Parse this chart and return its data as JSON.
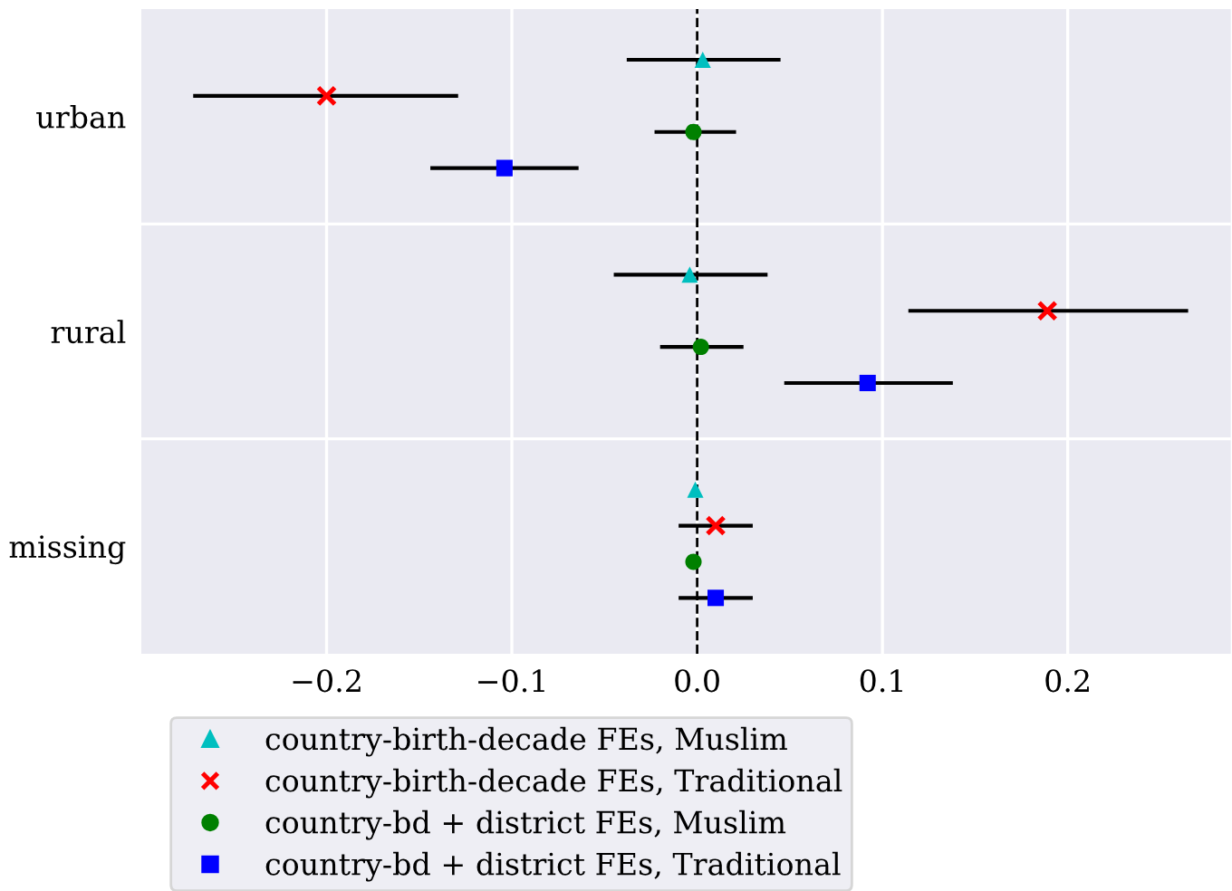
{
  "chart_data": {
    "type": "scatter",
    "orientation": "horizontal",
    "categories": [
      "urban",
      "rural",
      "missing"
    ],
    "series": [
      {
        "name": "country-birth-decade FEs, Muslim",
        "color": "#00bfbf",
        "marker": "triangle",
        "values": [
          0.003,
          -0.004,
          -0.001
        ],
        "errors": [
          [
            -0.038,
            0.045
          ],
          [
            -0.045,
            0.038
          ],
          null
        ]
      },
      {
        "name": "country-birth-decade FEs, Traditional",
        "color": "#ff0000",
        "marker": "cross",
        "values": [
          -0.2,
          0.189,
          0.01
        ],
        "errors": [
          [
            -0.272,
            -0.129
          ],
          [
            0.114,
            0.265
          ],
          [
            -0.01,
            0.03
          ]
        ]
      },
      {
        "name": "country-bd + district FEs, Muslim",
        "color": "#008000",
        "marker": "circle",
        "values": [
          -0.002,
          0.002,
          -0.002
        ],
        "errors": [
          [
            -0.023,
            0.021
          ],
          [
            -0.02,
            0.025
          ],
          null
        ]
      },
      {
        "name": "country-bd + district FEs, Traditional",
        "color": "#0000ff",
        "marker": "square",
        "values": [
          -0.104,
          0.092,
          0.01
        ],
        "errors": [
          [
            -0.144,
            -0.064
          ],
          [
            0.047,
            0.138
          ],
          [
            -0.01,
            0.03
          ]
        ]
      }
    ],
    "xlim": [
      -0.3,
      0.288
    ],
    "xticks": [
      {
        "value": -0.2,
        "label": "−0.2"
      },
      {
        "value": -0.1,
        "label": "−0.1"
      },
      {
        "value": 0.0,
        "label": "0.0"
      },
      {
        "value": 0.1,
        "label": "0.1"
      },
      {
        "value": 0.2,
        "label": "0.2"
      }
    ],
    "ref_lines": [
      {
        "axis": "x",
        "value": 0,
        "color": "#000000",
        "line_style": "dashed"
      }
    ],
    "grid": true,
    "legend": "bottom left"
  }
}
